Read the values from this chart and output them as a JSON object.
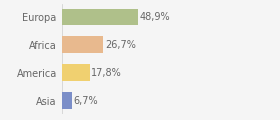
{
  "categories": [
    "Europa",
    "Africa",
    "America",
    "Asia"
  ],
  "values": [
    48.9,
    26.7,
    17.8,
    6.7
  ],
  "labels": [
    "48,9%",
    "26,7%",
    "17,8%",
    "6,7%"
  ],
  "colors": [
    "#afc08a",
    "#e8b98e",
    "#f0d070",
    "#7b8ec8"
  ],
  "background_color": "#f5f5f5",
  "xlim": [
    0,
    100
  ],
  "bar_height": 0.6,
  "label_fontsize": 7,
  "tick_fontsize": 7,
  "tick_color": "#666666",
  "label_color": "#666666"
}
